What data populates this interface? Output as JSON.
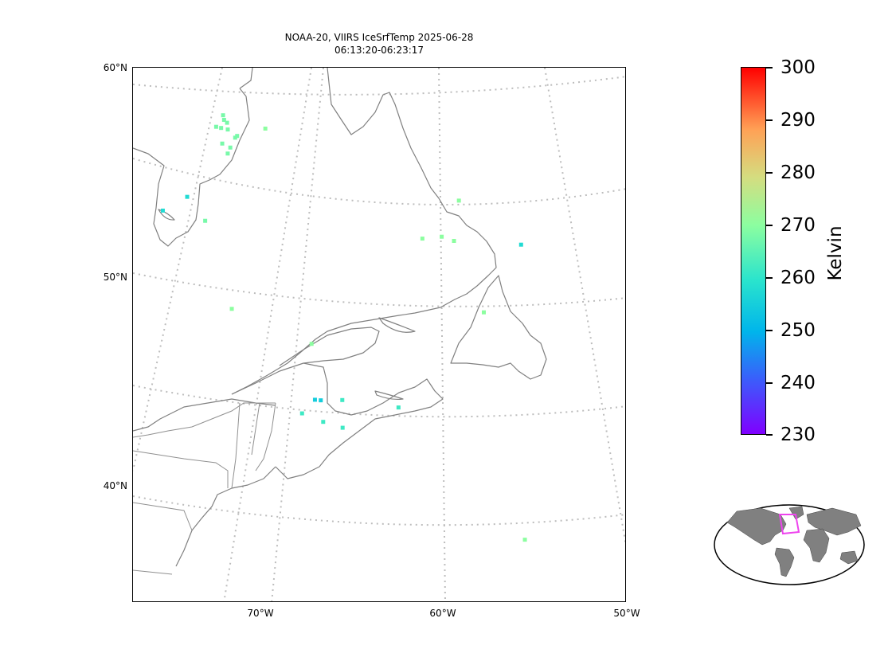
{
  "title_lines": [
    "NOAA-20, VIIRS IceSrfTemp 2025-06-28",
    "06:13:20-06:23:17"
  ],
  "map": {
    "projection": "lambert-conformal",
    "extent_lon": [
      -77,
      -50
    ],
    "extent_lat": [
      35,
      60
    ],
    "lat_tick_labels": [
      "60°N",
      "50°N",
      "40°N"
    ],
    "lon_tick_labels": [
      "70°W",
      "60°W",
      "50°W"
    ],
    "gridlines": "dotted gray",
    "coastline_color": "#808080",
    "background_color": "#ffffff"
  },
  "colorbar": {
    "label": "Kelvin",
    "tick_labels": [
      "300",
      "290",
      "280",
      "270",
      "260",
      "250",
      "240",
      "230"
    ],
    "colormap": "rainbow",
    "range": [
      230,
      300
    ]
  },
  "overview_map": {
    "projection": "robinson",
    "land_color": "#808080",
    "region_outline_color": "#ee44ee"
  },
  "observations": [
    {
      "lat": 57.8,
      "lon": -73.5,
      "value": 268
    },
    {
      "lat": 57.6,
      "lon": -73.4,
      "value": 268
    },
    {
      "lat": 57.5,
      "lon": -73.2,
      "value": 268
    },
    {
      "lat": 57.2,
      "lon": -73.8,
      "value": 268
    },
    {
      "lat": 57.2,
      "lon": -73.5,
      "value": 268
    },
    {
      "lat": 57.2,
      "lon": -73.1,
      "value": 268
    },
    {
      "lat": 57.0,
      "lon": -72.5,
      "value": 268
    },
    {
      "lat": 56.9,
      "lon": -72.6,
      "value": 268
    },
    {
      "lat": 56.5,
      "lon": -73.3,
      "value": 268
    },
    {
      "lat": 56.4,
      "lon": -72.8,
      "value": 268
    },
    {
      "lat": 56.1,
      "lon": -72.9,
      "value": 268
    },
    {
      "lat": 57.6,
      "lon": -70.9,
      "value": 270
    },
    {
      "lat": 53.7,
      "lon": -74.8,
      "value": 258
    },
    {
      "lat": 52.8,
      "lon": -76.0,
      "value": 258
    },
    {
      "lat": 52.8,
      "lon": -73.6,
      "value": 268
    },
    {
      "lat": 49.0,
      "lon": -71.5,
      "value": 270
    },
    {
      "lat": 53.2,
      "lon": -61.3,
      "value": 270
    },
    {
      "lat": 53.3,
      "lon": -60.2,
      "value": 270
    },
    {
      "lat": 53.1,
      "lon": -59.5,
      "value": 270
    },
    {
      "lat": 55.0,
      "lon": -59.2,
      "value": 270
    },
    {
      "lat": 52.8,
      "lon": -55.7,
      "value": 258
    },
    {
      "lat": 49.7,
      "lon": -57.9,
      "value": 270
    },
    {
      "lat": 47.9,
      "lon": -67.1,
      "value": 270
    },
    {
      "lat": 45.3,
      "lon": -66.7,
      "value": 255
    },
    {
      "lat": 45.3,
      "lon": -66.4,
      "value": 255
    },
    {
      "lat": 45.4,
      "lon": -65.3,
      "value": 262
    },
    {
      "lat": 45.2,
      "lon": -62.4,
      "value": 262
    },
    {
      "lat": 44.6,
      "lon": -67.3,
      "value": 262
    },
    {
      "lat": 44.3,
      "lon": -66.2,
      "value": 262
    },
    {
      "lat": 44.1,
      "lon": -65.2,
      "value": 262
    },
    {
      "lat": 38.9,
      "lon": -56.2,
      "value": 270
    }
  ]
}
